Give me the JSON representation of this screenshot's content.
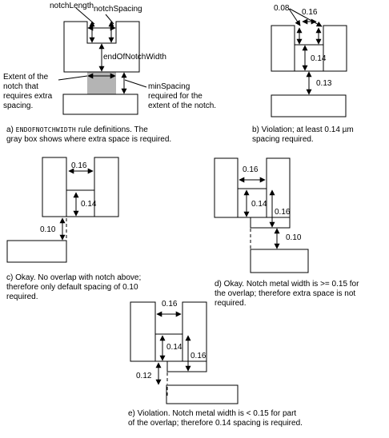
{
  "panel_a": {
    "notch_length": "notchLength",
    "notch_spacing": "notchSpacing",
    "end_of_notch_width": "endOfNotchWidth",
    "extent_note": "Extent of the\nnotch that\nrequires extra\nspacing.",
    "min_spacing_note": "minSpacing\nrequired for the\nextent of the notch.",
    "caption_prefix": "a) ",
    "caption_keyword": "ENDOFNOTCHWIDTH",
    "caption_rest": " rule definitions. The\ngray box shows where extra space is required."
  },
  "panel_b": {
    "label_width": "0.08",
    "label_spacing": "0.16",
    "label_end": "0.14",
    "label_gap": "0.13",
    "caption": "b) Violation; at least 0.14 µm\nspacing required."
  },
  "panel_c": {
    "label_spacing": "0.16",
    "label_end": "0.14",
    "label_gap": "0.10",
    "caption": "c) Okay. No overlap with notch above;\ntherefore only default spacing of 0.10\nrequired."
  },
  "panel_d": {
    "label_spacing": "0.16",
    "label_end": "0.14",
    "label_width": "0.16",
    "label_gap": "0.10",
    "caption": "d) Okay. Notch metal width is >= 0.15 for\nthe overlap; therefore extra space is not\nrequired."
  },
  "panel_e": {
    "label_spacing": "0.16",
    "label_end": "0.14",
    "label_width": "0.16",
    "label_gap": "0.12",
    "caption": "e) Violation. Notch metal width is < 0.15 for part\nof the overlap; therefore 0.14 spacing is required."
  }
}
